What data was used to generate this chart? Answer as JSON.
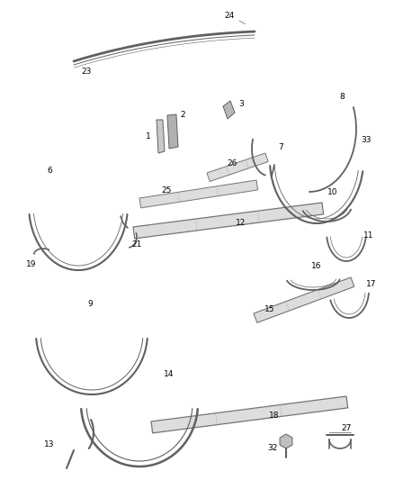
{
  "bg_color": "#ffffff",
  "lc": "#606060",
  "lc_light": "#999999",
  "fw": 4.38,
  "fh": 5.33,
  "dpi": 100,
  "label_fs": 6.5
}
